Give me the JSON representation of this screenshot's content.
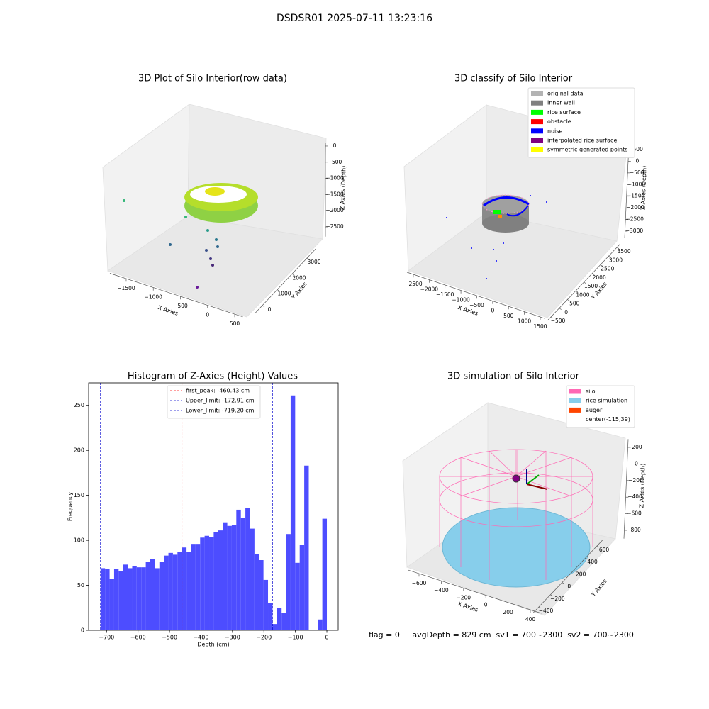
{
  "title": "DSDSR01 2025-07-11 13:23:16",
  "footer": "flag = 0     avgDepth = 829 cm  sv1 = 700~2300  sv2 = 700~2300",
  "chart_data": [
    {
      "type": "scatter3d",
      "title": "3D Plot of Silo Interior(row data)",
      "xlabel": "X Axies",
      "ylabel": "Y Axies",
      "zlabel": "Z Axies (Depth)",
      "xlim": [
        -1800,
        650
      ],
      "xticks": [
        {
          "value": -1500,
          "label": "−1500"
        },
        {
          "value": -1000,
          "label": "−1000"
        },
        {
          "value": -500,
          "label": "−500"
        },
        0,
        500
      ],
      "ylim": [
        -500,
        3600
      ],
      "yticks": [
        0,
        1000,
        2000,
        3000
      ],
      "zlim": [
        -2800,
        100
      ],
      "zticks": [
        0,
        {
          "value": -500,
          "label": "−500"
        },
        {
          "value": -1000,
          "label": "−1000"
        },
        {
          "value": -1500,
          "label": "−1500"
        },
        {
          "value": -2000,
          "label": "−2000"
        },
        {
          "value": -2500,
          "label": "−2500"
        }
      ]
    },
    {
      "type": "scatter3d",
      "title": "3D classify of Silo Interior",
      "xlabel": "X Axies",
      "ylabel": "Y Axies",
      "zlabel": "Z Axies (Depth)",
      "xlim": [
        -2700,
        1650
      ],
      "xticks": [
        {
          "value": -2500,
          "label": "−2500"
        },
        {
          "value": -2000,
          "label": "−2000"
        },
        {
          "value": -1500,
          "label": "−1500"
        },
        {
          "value": -1000,
          "label": "−1000"
        },
        {
          "value": -500,
          "label": "−500"
        },
        0,
        500,
        1000,
        1500
      ],
      "ylim": [
        -700,
        3700
      ],
      "yticks": [
        {
          "value": -500,
          "label": "−500"
        },
        0,
        500,
        1000,
        1500,
        2000,
        2500,
        3000,
        3500
      ],
      "zlim": [
        -3300,
        700
      ],
      "zticks": [
        {
          "value": -3000,
          "label": "−3000"
        },
        {
          "value": -2500,
          "label": "−2500"
        },
        {
          "value": -2000,
          "label": "−2000"
        },
        {
          "value": -1500,
          "label": "−1500"
        },
        {
          "value": -1000,
          "label": "−1000"
        },
        {
          "value": -500,
          "label": "−500"
        },
        0,
        500
      ],
      "legend": [
        {
          "name": "original data",
          "color": "#b3b3b3"
        },
        {
          "name": "inner wall",
          "color": "#808080"
        },
        {
          "name": "rice surface",
          "color": "#00ff00"
        },
        {
          "name": "obstacle",
          "color": "#ff0000"
        },
        {
          "name": "noise",
          "color": "#0000ff"
        },
        {
          "name": "interpolated rice surface",
          "color": "#800080"
        },
        {
          "name": "symmetric generated points",
          "color": "#ffff00"
        }
      ]
    },
    {
      "type": "histogram",
      "title": "Histogram of Z-Axies (Height) Values",
      "xlabel": "Depth (cm)",
      "ylabel": "Frequency",
      "color": "#4d4dff",
      "bins": [
        -719.2,
        -704.8,
        -690.4,
        -676.0,
        -661.7,
        -647.3,
        -632.9,
        -618.5,
        -604.2,
        -589.7,
        -575.4,
        -561.0,
        -546.6,
        -532.2,
        -517.8,
        -503.4,
        -489.1,
        -474.7,
        -460.3,
        -445.9,
        -431.5,
        -417.1,
        -402.7,
        -388.4,
        -374.0,
        -359.6,
        -345.2,
        -330.8,
        -316.4,
        -302.1,
        -287.7,
        -273.3,
        -258.9,
        -244.5,
        -230.1,
        -215.8,
        -201.4,
        -187.0,
        -172.6,
        -158.2,
        -143.8,
        -129.4,
        -115.1,
        -100.7,
        -86.3,
        -71.9,
        -57.5,
        -43.1,
        -28.8,
        -14.4,
        0
      ],
      "values": [
        69,
        68,
        57,
        68,
        66,
        73,
        69,
        71,
        70,
        70,
        76,
        79,
        69,
        76,
        83,
        86,
        84,
        87,
        92,
        87,
        96,
        96,
        103,
        105,
        104,
        109,
        111,
        120,
        116,
        117,
        134,
        125,
        136,
        113,
        85,
        78,
        56,
        30,
        7,
        25,
        19,
        107,
        261,
        75,
        95,
        183,
        0,
        0,
        12,
        124
      ],
      "xlim": [
        -757,
        36
      ],
      "xticks": [
        {
          "value": -700,
          "label": "−700"
        },
        {
          "value": -600,
          "label": "−600"
        },
        {
          "value": -500,
          "label": "−500"
        },
        {
          "value": -400,
          "label": "−400"
        },
        {
          "value": -300,
          "label": "−300"
        },
        {
          "value": -200,
          "label": "−200"
        },
        {
          "value": -100,
          "label": "−100"
        },
        0
      ],
      "ylim": [
        0,
        275
      ],
      "yticks": [
        0,
        50,
        100,
        150,
        200,
        250
      ],
      "vlines": [
        {
          "value": -460.43,
          "label": "first_peak: -460.43 cm",
          "color": "#ff0000"
        },
        {
          "value": -172.91,
          "label": "Upper_limit: -172.91 cm",
          "color": "#0000cc"
        },
        {
          "value": -719.2,
          "label": "Lower_limit: -719.20 cm",
          "color": "#0000cc"
        }
      ]
    },
    {
      "type": "surface3d",
      "title": "3D simulation of Silo Interior",
      "xlabel": "X Axies",
      "ylabel": "Y Axies",
      "zlabel": "Z Axies (Depth)",
      "xlim": [
        -700,
        500
      ],
      "xticks": [
        {
          "value": -600,
          "label": "−600"
        },
        {
          "value": -400,
          "label": "−400"
        },
        {
          "value": -200,
          "label": "−200"
        },
        0,
        200,
        400
      ],
      "ylim": [
        -500,
        700
      ],
      "yticks": [
        {
          "value": -400,
          "label": "−400"
        },
        {
          "value": -200,
          "label": "−200"
        },
        0,
        200,
        400,
        600
      ],
      "zlim": [
        -900,
        300
      ],
      "zticks": [
        200,
        0,
        {
          "value": -200,
          "label": "−200"
        },
        {
          "value": -400,
          "label": "−400"
        },
        {
          "value": -600,
          "label": "−600"
        },
        {
          "value": -800,
          "label": "−800"
        }
      ],
      "legend": [
        {
          "name": "silo",
          "color": "#ff69b4"
        },
        {
          "name": "rice simulation",
          "color": "#87ceeb"
        },
        {
          "name": "auger",
          "color": "#ff4500"
        },
        {
          "name": "center(-115,39)"
        }
      ]
    }
  ]
}
